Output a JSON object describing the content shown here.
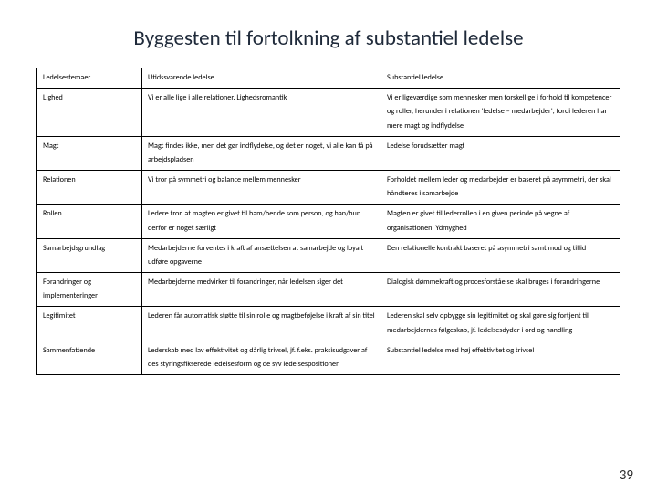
{
  "title": "Byggesten til fortolkning af substantiel ledelse",
  "page_number": "39",
  "columns": [
    "c0",
    "c1",
    "c2"
  ],
  "rows": [
    [
      "Ledelsestemaer",
      "Utidssvarende ledelse",
      "Substantiel ledelse"
    ],
    [
      "Lighed",
      "Vi er alle lige i alle relationer. Lighedsromantik",
      "Vi er ligeværdige som mennesker men forskellige i forhold til kompetencer og roller, herunder i relationen 'ledelse – medarbejder', fordi lederen har mere magt og indflydelse"
    ],
    [
      "Magt",
      "Magt findes ikke, men det gør indflydelse, og det er noget, vi alle kan få på arbejdspladsen",
      "Ledelse forudsætter magt"
    ],
    [
      "Relationen",
      "Vi tror på symmetri og balance mellem mennesker",
      "Forholdet mellem leder og medarbejder er baseret på asymmetri, der skal håndteres i samarbejde"
    ],
    [
      "Rollen",
      "Ledere tror, at magten er givet til ham/hende som person, og han/hun derfor er noget særligt",
      "Magten er givet til lederrollen i en given periode på vegne af organisationen. Ydmyghed"
    ],
    [
      "Samarbejdsgrundlag",
      "Medarbejderne forventes i kraft af ansættelsen at samarbejde og loyalt udføre opgaverne",
      "Den relationelle kontrakt baseret på asymmetri samt mod og tillid"
    ],
    [
      "Forandringer og implementeringer",
      "Medarbejderne medvirker til forandringer, når ledelsen siger det",
      "Dialogisk dømmekraft og procesforståelse skal bruges i forandringerne"
    ],
    [
      "Legitimitet",
      "Lederen får automatisk støtte til sin rolle og magtbeføjelse i kraft af sin titel",
      "Lederen skal selv opbygge sin legitimitet og skal gøre sig fortjent til medarbejdernes følgeskab, jf. ledelsesdyder i ord og handling"
    ],
    [
      "Sammenfattende",
      "Lederskab med lav effektivitet og dårlig trivsel, jf. f.eks. praksisudgaver af des styringsfikserede ledelsesform og de syv ledelsespositioner",
      "Substantiel ledelse med høj effektivitet og trivsel"
    ]
  ]
}
